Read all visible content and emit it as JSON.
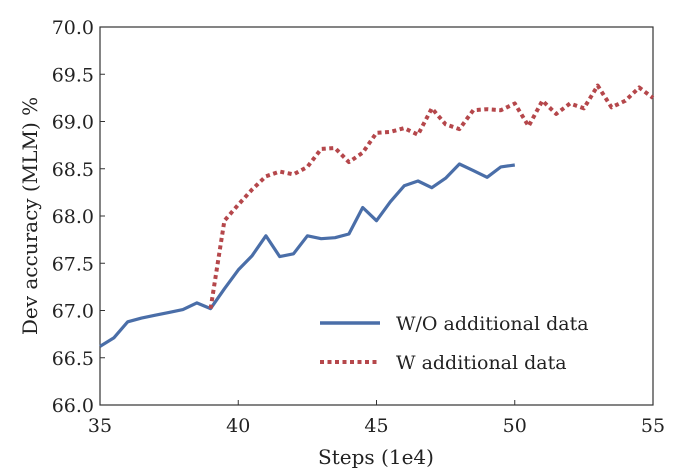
{
  "chart_data": {
    "type": "line",
    "title": "",
    "xlabel": "Steps (1e4)",
    "ylabel": "Dev accuracy (MLM) %",
    "xlim": [
      35,
      55
    ],
    "ylim": [
      66.0,
      70.0
    ],
    "xticks": [
      35,
      40,
      45,
      50,
      55
    ],
    "yticks": [
      66.0,
      66.5,
      67.0,
      67.5,
      68.0,
      68.5,
      69.0,
      69.5,
      70.0
    ],
    "grid": false,
    "legend_position": "bottom-right",
    "series": [
      {
        "name": "W/O additional data",
        "color": "#4a6ea8",
        "style": "solid",
        "x": [
          35,
          35.5,
          36,
          36.5,
          37,
          37.5,
          38,
          38.5,
          39,
          39.5,
          40,
          40.5,
          41,
          41.5,
          42,
          42.5,
          43,
          43.5,
          44,
          44.5,
          45,
          45.5,
          46,
          46.5,
          47,
          47.5,
          48,
          48.5,
          49,
          49.5,
          50
        ],
        "y": [
          66.62,
          66.71,
          66.88,
          66.92,
          66.95,
          66.98,
          67.01,
          67.08,
          67.02,
          67.23,
          67.43,
          67.58,
          67.79,
          67.57,
          67.6,
          67.79,
          67.76,
          67.77,
          67.81,
          68.09,
          67.95,
          68.15,
          68.32,
          68.37,
          68.3,
          68.4,
          68.55,
          68.48,
          68.41,
          68.52,
          68.54
        ]
      },
      {
        "name": "W additional data",
        "color": "#b5474b",
        "style": "dotted",
        "x": [
          39,
          39.5,
          40,
          40.5,
          41,
          41.5,
          42,
          42.5,
          43,
          43.5,
          44,
          44.5,
          45,
          45.5,
          46,
          46.5,
          47,
          47.5,
          48,
          48.5,
          49,
          49.5,
          50,
          50.5,
          51,
          51.5,
          52,
          52.5,
          53,
          53.5,
          54,
          54.5,
          55
        ],
        "y": [
          67.02,
          67.95,
          68.12,
          68.28,
          68.42,
          68.47,
          68.44,
          68.52,
          68.71,
          68.72,
          68.57,
          68.67,
          68.88,
          68.89,
          68.93,
          68.86,
          69.14,
          68.97,
          68.92,
          69.12,
          69.13,
          69.12,
          69.19,
          68.95,
          69.22,
          69.08,
          69.19,
          69.14,
          69.38,
          69.15,
          69.22,
          69.36,
          69.25
        ]
      }
    ]
  }
}
